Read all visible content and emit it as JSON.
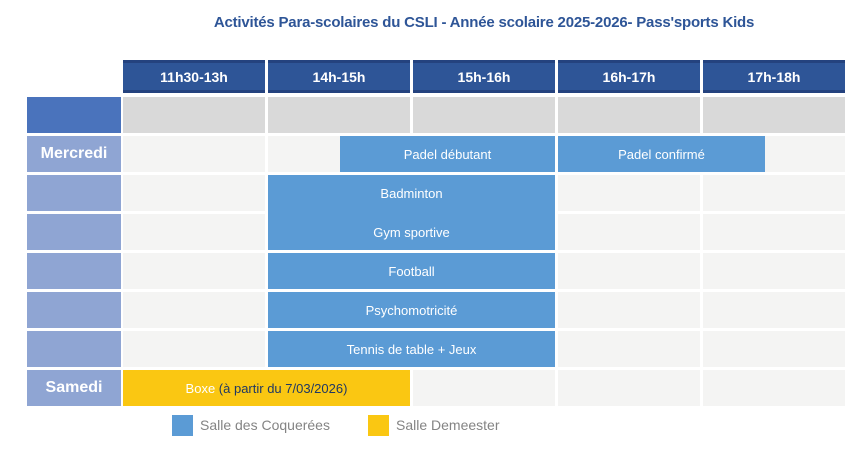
{
  "title": "Activités Para-scolaires du CSLI - Année scolaire 2025-2026- Pass'sports Kids",
  "columns": [
    "11h30-13h",
    "14h-15h",
    "15h-16h",
    "16h-17h",
    "17h-18h"
  ],
  "days": [
    {
      "row": 1,
      "label": "Mercredi"
    },
    {
      "row": 7,
      "label": "Samedi"
    }
  ],
  "activities": [
    {
      "label": "Padel débutant",
      "room": "Salle des Coquerées"
    },
    {
      "label": "Padel confirmé",
      "room": "Salle des Coquerées"
    },
    {
      "label": "Badminton",
      "room": "Salle des Coquerées"
    },
    {
      "label": "Gym sportive",
      "room": "Salle des Coquerées"
    },
    {
      "label": "Football",
      "room": "Salle des Coquerées"
    },
    {
      "label": "Psychomotricité",
      "room": "Salle des Coquerées"
    },
    {
      "label": "Tennis de table + Jeux",
      "room": "Salle des Coquerées"
    },
    {
      "label": "Boxe",
      "note": "(à partir du 7/03/2026)",
      "room": "Salle Demeester"
    }
  ],
  "legend": {
    "items": [
      {
        "label": "Salle des Coquerées",
        "color": "#5B9BD5"
      },
      {
        "label": "Salle Demeester",
        "color": "#FAC712"
      }
    ]
  },
  "colors": {
    "header_blue": "#2E5597",
    "activity_blue": "#5B9BD5",
    "activity_yellow": "#FAC712",
    "day_column": "#8FA5D3",
    "day_column_top": "#4A73BC",
    "empty_row_gray": "#D9D9D9",
    "body_row_light": "#F4F4F3",
    "title_blue": "#2E5597",
    "note_navy": "#1F3864"
  }
}
